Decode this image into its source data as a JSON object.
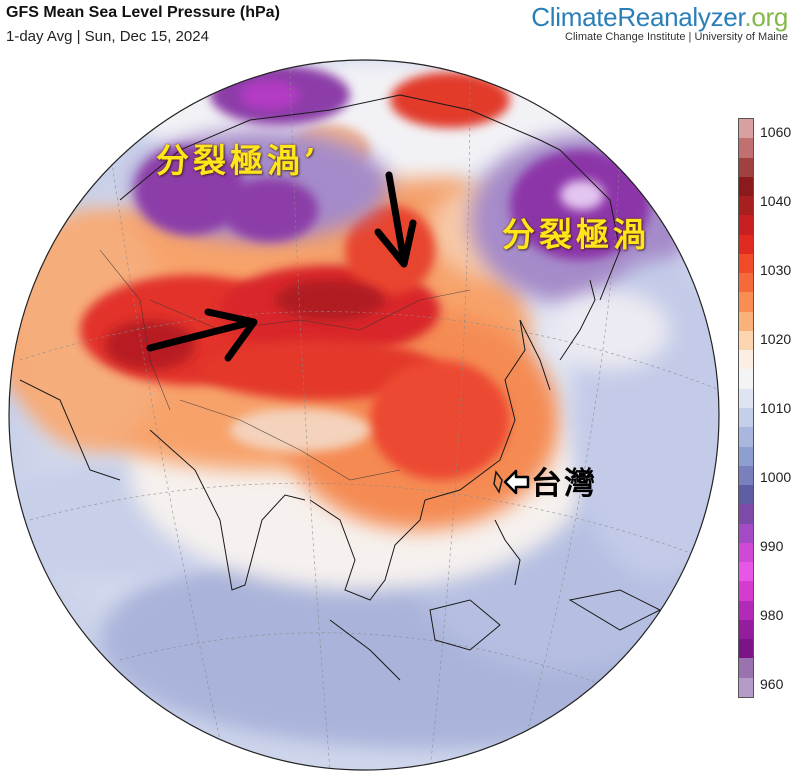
{
  "header": {
    "title": "GFS Mean Sea Level Pressure (hPa)",
    "subtitle": "1-day Avg | Sun, Dec 15, 2024"
  },
  "brand": {
    "part1": "Climate",
    "part2": "Reanalyzer",
    "part3": ".org",
    "subtitle": "Climate Change Institute | University of Maine"
  },
  "annotations": {
    "left_label": "分裂極渦’",
    "right_label": "分裂極渦",
    "taiwan_label": "台灣"
  },
  "colorbar": {
    "ticks": [
      "1060",
      "1040",
      "1030",
      "1020",
      "1010",
      "1000",
      "990",
      "980",
      "960"
    ],
    "colors": [
      "#d9a0a0",
      "#c07070",
      "#a04040",
      "#8b1a1a",
      "#a81f1f",
      "#c82020",
      "#e02a20",
      "#f04a28",
      "#f56a3a",
      "#f98e55",
      "#fbb27a",
      "#fdd5b0",
      "#fbeee5",
      "#f4f4f4",
      "#dfe4f2",
      "#c5cfea",
      "#a9b7de",
      "#8d9ed0",
      "#7a7fbd",
      "#5f5ea4",
      "#7d4aa8",
      "#a44ac2",
      "#cd49d6",
      "#e856e6",
      "#d33ccf",
      "#b22bb8",
      "#941d9e",
      "#7c1488",
      "#9b72b0",
      "#b49bc8"
    ]
  },
  "map": {
    "arrow_color": "#000000",
    "high_pressure_color": "#e0321e",
    "low_pressure_color": "#8e2aa8"
  }
}
